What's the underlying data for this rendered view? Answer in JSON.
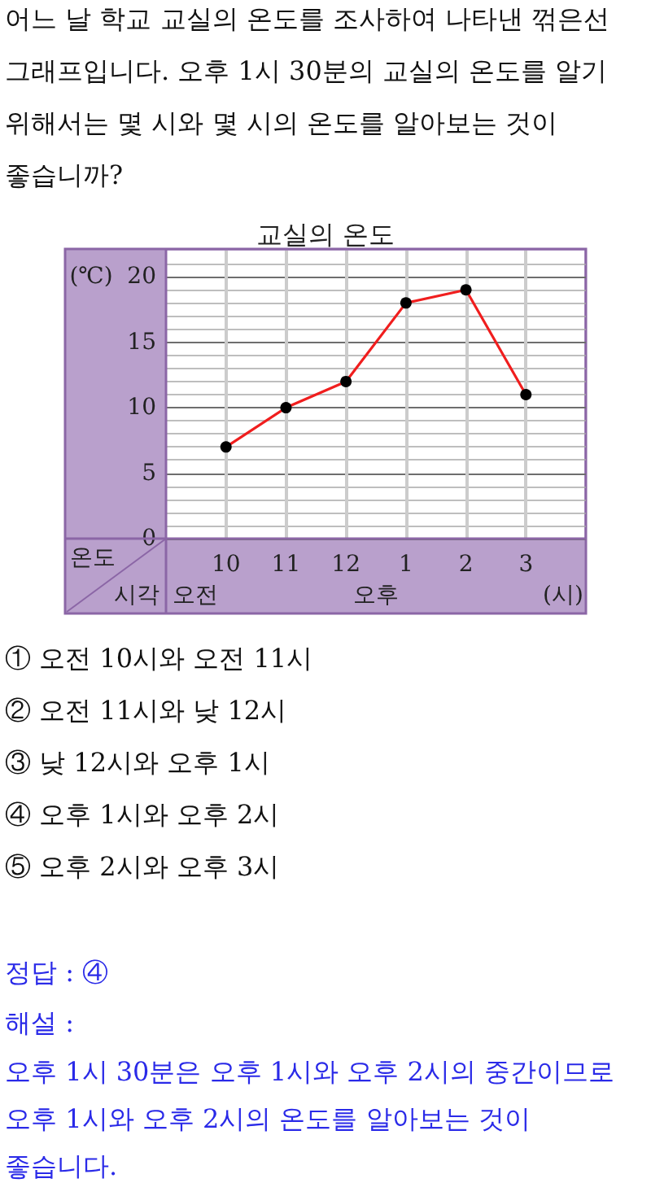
{
  "chart_data": {
    "type": "line",
    "title": "교실의 온도",
    "subtitle": "어느 날 학교 교실의 온도를 조사하여 나타낸 꺾은선 그래프입니다. 오후 1시 30분의 교실의 온도를 알기 위해서는 몇 시와 몇 시의 온도를 알아보는 것이 좋습니까?",
    "xlabel": "시각",
    "ylabel": "온도",
    "annotations": [
      "(℃)",
      "오전",
      "오후",
      "(시)",
      "① 오전 10시와 오전 11시",
      "② 오전 11시와 낮 12시",
      "③ 낮 12시와 오후 1시",
      "④ 오후 1시와 오후 2시",
      "⑤ 오후 2시와 오후 3시",
      "정답 : ④",
      "해설 :",
      "오후 1시 30분은 오후 1시와 오후 2시의 중간이므로 오후 1시와 오후 2시의 온도를 알아보는 것이 좋습니다."
    ],
    "categories": [
      "10",
      "11",
      "12",
      "1",
      "2",
      "3"
    ],
    "values": [
      7,
      10,
      12,
      18,
      19,
      11
    ],
    "color": "#f01e1e",
    "ylim": [
      0,
      22
    ],
    "yticks": [
      0,
      5,
      10,
      15,
      20
    ],
    "grid": true,
    "marker": "circle",
    "line_style": "solid"
  }
}
